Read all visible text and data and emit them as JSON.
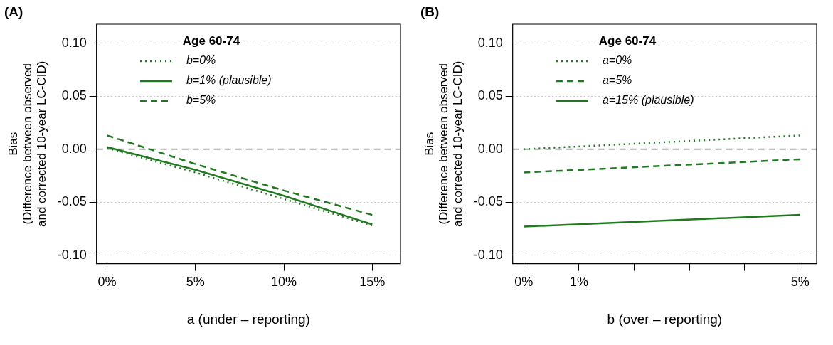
{
  "chart_data": [
    {
      "type": "line",
      "title": "(A)",
      "xlabel": "a (under – reporting)",
      "ylabel": "Bias\n(Difference between observed\nand corrected 10-year LC-CID)",
      "legend_title": "Age 60-74",
      "legend": "top",
      "grid": "y",
      "xlim": [
        -0.6,
        16.6
      ],
      "xticks": [
        {
          "value": 0,
          "label": "0%"
        },
        {
          "value": 5,
          "label": "5%"
        },
        {
          "value": 10,
          "label": "10%"
        },
        {
          "value": 15,
          "label": "15%"
        }
      ],
      "ylim": [
        -0.108,
        0.118
      ],
      "yticks": [
        {
          "value": -0.1,
          "label": "-0.10"
        },
        {
          "value": -0.05,
          "label": "-0.05"
        },
        {
          "value": 0,
          "label": "0.00"
        },
        {
          "value": 0.05,
          "label": "0.05"
        },
        {
          "value": 0.1,
          "label": "0.10"
        }
      ],
      "ref_lines": [
        {
          "axis": "y",
          "value": 0,
          "color": "#aaaaaa",
          "line_style": "dashed"
        }
      ],
      "series": [
        {
          "name": "b=0%",
          "color": "#1f7a1f",
          "line_style": "dotted",
          "x": [
            0,
            5,
            10,
            15
          ],
          "values": [
            0.001,
            -0.022,
            -0.047,
            -0.072
          ]
        },
        {
          "name": "b=1% (plausible)",
          "color": "#1f7a1f",
          "line_style": "solid",
          "x": [
            0,
            5,
            10,
            15
          ],
          "values": [
            0.002,
            -0.0195,
            -0.044,
            -0.071
          ]
        },
        {
          "name": "b=5%",
          "color": "#1f7a1f",
          "line_style": "dashed",
          "x": [
            0,
            5,
            10,
            15
          ],
          "values": [
            0.013,
            -0.014,
            -0.039,
            -0.062
          ]
        }
      ]
    },
    {
      "type": "line",
      "title": "(B)",
      "xlabel": "b (over – reporting)",
      "ylabel": "Bias\n(Difference between observed\nand corrected 10-year LC-CID)",
      "legend_title": "Age 60-74",
      "legend": "top",
      "grid": "y",
      "xlim": [
        -0.2,
        5.3
      ],
      "xticks": [
        {
          "value": 0,
          "label": "0%"
        },
        {
          "value": 1,
          "label": "1%"
        },
        {
          "value": 2,
          "label": null
        },
        {
          "value": 3,
          "label": null
        },
        {
          "value": 4,
          "label": null
        },
        {
          "value": 5,
          "label": "5%"
        }
      ],
      "ylim": [
        -0.108,
        0.118
      ],
      "yticks": [
        {
          "value": -0.1,
          "label": "-0.10"
        },
        {
          "value": -0.05,
          "label": "-0.05"
        },
        {
          "value": 0,
          "label": "0.00"
        },
        {
          "value": 0.05,
          "label": "0.05"
        },
        {
          "value": 0.1,
          "label": "0.10"
        }
      ],
      "ref_lines": [
        {
          "axis": "y",
          "value": 0,
          "color": "#aaaaaa",
          "line_style": "dashed"
        }
      ],
      "series": [
        {
          "name": "a=0%",
          "color": "#1f7a1f",
          "line_style": "dotted",
          "x": [
            0,
            5
          ],
          "values": [
            0.0,
            0.013
          ]
        },
        {
          "name": "a=5%",
          "color": "#1f7a1f",
          "line_style": "dashed",
          "x": [
            0,
            5
          ],
          "values": [
            -0.022,
            -0.0095
          ]
        },
        {
          "name": "a=15% (plausible)",
          "color": "#1f7a1f",
          "line_style": "solid",
          "x": [
            0,
            5
          ],
          "values": [
            -0.073,
            -0.062
          ]
        }
      ]
    }
  ]
}
